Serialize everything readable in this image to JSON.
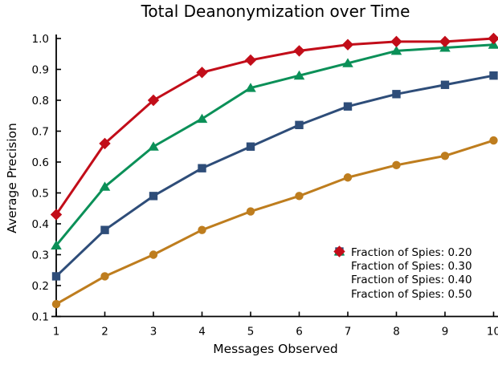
{
  "title": "Total Deanonymization over Time",
  "chart_data": {
    "type": "line",
    "title": "Total Deanonymization over Time",
    "xlabel": "Messages Observed",
    "ylabel": "Average Precision",
    "x": [
      1,
      2,
      3,
      4,
      5,
      6,
      7,
      8,
      9,
      10
    ],
    "xlim": [
      1,
      10.1
    ],
    "ylim": [
      0.1,
      1.0
    ],
    "x_tick_labels": [
      "1",
      "2",
      "3",
      "4",
      "5",
      "6",
      "7",
      "8",
      "9",
      "10"
    ],
    "y_tick_labels": [
      "0.1",
      "0.2",
      "0.3",
      "0.4",
      "0.5",
      "0.6",
      "0.7",
      "0.8",
      "0.9",
      "1.0"
    ],
    "y_ticks": [
      0.1,
      0.2,
      0.3,
      0.4,
      0.5,
      0.6,
      0.7,
      0.8,
      0.9,
      1.0
    ],
    "grid": false,
    "legend_position": "lower right",
    "series": [
      {
        "name": "Fraction of Spies: 0.20",
        "color": "#BE7D1E",
        "marker": "circle",
        "values": [
          0.14,
          0.23,
          0.3,
          0.38,
          0.44,
          0.49,
          0.55,
          0.59,
          0.62,
          0.67
        ]
      },
      {
        "name": "Fraction of Spies: 0.30",
        "color": "#2E4D79",
        "marker": "square",
        "values": [
          0.23,
          0.38,
          0.49,
          0.58,
          0.65,
          0.72,
          0.78,
          0.82,
          0.85,
          0.88
        ]
      },
      {
        "name": "Fraction of Spies: 0.40",
        "color": "#0B9058",
        "marker": "triangle",
        "values": [
          0.33,
          0.52,
          0.65,
          0.74,
          0.84,
          0.88,
          0.92,
          0.96,
          0.97,
          0.98
        ]
      },
      {
        "name": "Fraction of Spies: 0.50",
        "color": "#C20D19",
        "marker": "diamond",
        "values": [
          0.43,
          0.66,
          0.8,
          0.89,
          0.93,
          0.96,
          0.98,
          0.99,
          0.99,
          1.0
        ]
      }
    ]
  }
}
